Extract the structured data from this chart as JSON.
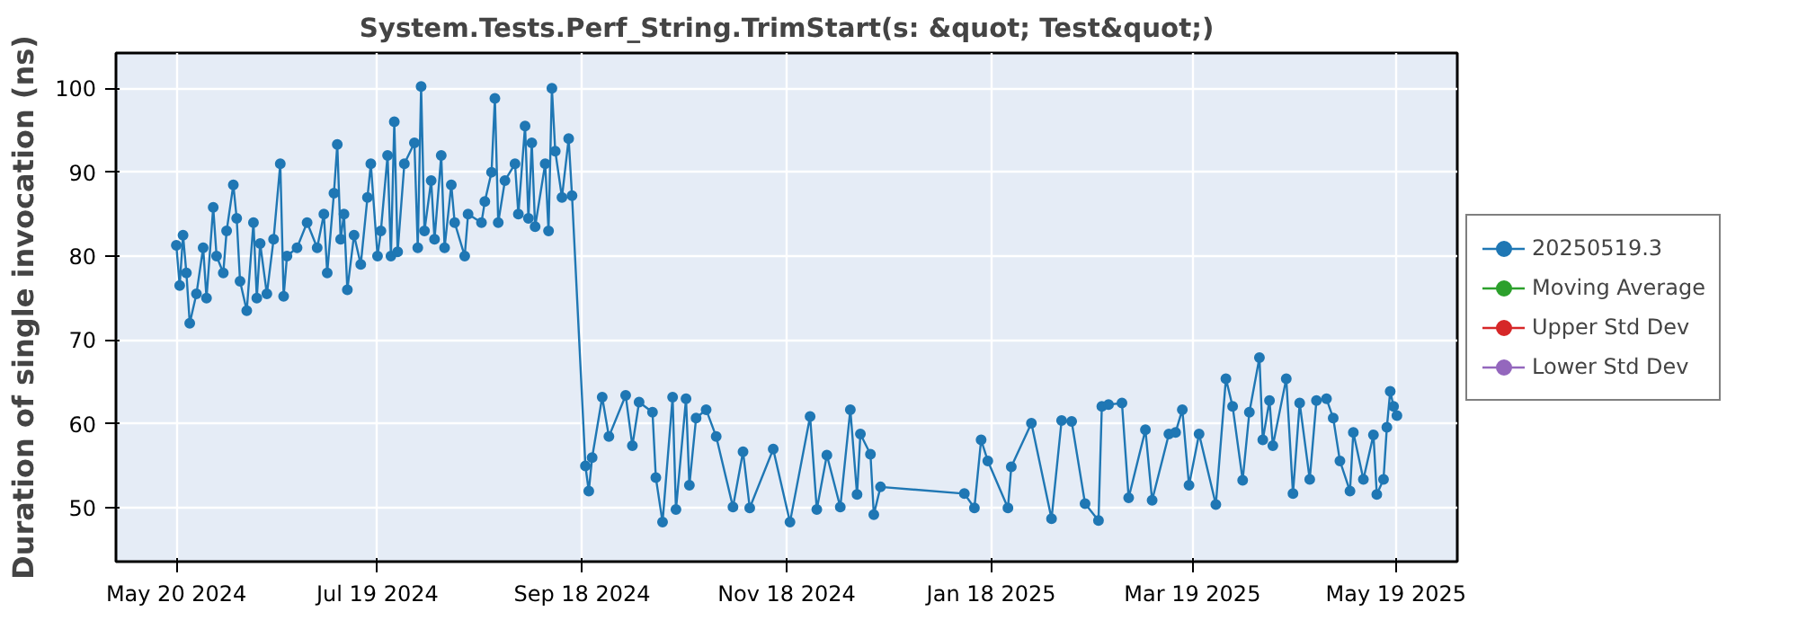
{
  "chart_data": {
    "type": "line",
    "title": "System.Tests.Perf_String.TrimStart(s: &quot; Test&quot;)",
    "ylabel": "Duration of single invocation (ns)",
    "xlim": [
      "2024-05-02",
      "2025-06-06"
    ],
    "ylim": [
      43.6,
      104.2
    ],
    "xticks": [
      {
        "value": "2024-05-20",
        "label": "May 20 2024"
      },
      {
        "value": "2024-07-19",
        "label": "Jul 19 2024"
      },
      {
        "value": "2024-09-18",
        "label": "Sep 18 2024"
      },
      {
        "value": "2024-11-18",
        "label": "Nov 18 2024"
      },
      {
        "value": "2025-01-18",
        "label": "Jan 18 2025"
      },
      {
        "value": "2025-03-19",
        "label": "Mar 19 2025"
      },
      {
        "value": "2025-05-19",
        "label": "May 19 2025"
      }
    ],
    "yticks": [
      50,
      60,
      70,
      80,
      90,
      100
    ],
    "grid": true,
    "legend": "right",
    "marker": "circle",
    "line_style": "solid",
    "series": [
      {
        "name": "20250519.3",
        "color": "#1f77b4",
        "x": [
          "2024-05-20",
          "2024-05-21",
          "2024-05-22",
          "2024-05-23",
          "2024-05-24",
          "2024-05-26",
          "2024-05-28",
          "2024-05-29",
          "2024-05-31",
          "2024-06-01",
          "2024-06-03",
          "2024-06-04",
          "2024-06-06",
          "2024-06-07",
          "2024-06-08",
          "2024-06-10",
          "2024-06-12",
          "2024-06-13",
          "2024-06-14",
          "2024-06-16",
          "2024-06-18",
          "2024-06-20",
          "2024-06-21",
          "2024-06-22",
          "2024-06-25",
          "2024-06-28",
          "2024-07-01",
          "2024-07-03",
          "2024-07-04",
          "2024-07-06",
          "2024-07-07",
          "2024-07-08",
          "2024-07-09",
          "2024-07-10",
          "2024-07-12",
          "2024-07-14",
          "2024-07-16",
          "2024-07-17",
          "2024-07-19",
          "2024-07-20",
          "2024-07-22",
          "2024-07-23",
          "2024-07-24",
          "2024-07-25",
          "2024-07-27",
          "2024-07-30",
          "2024-07-31",
          "2024-08-01",
          "2024-08-02",
          "2024-08-04",
          "2024-08-05",
          "2024-08-07",
          "2024-08-08",
          "2024-08-10",
          "2024-08-11",
          "2024-08-14",
          "2024-08-15",
          "2024-08-19",
          "2024-08-20",
          "2024-08-22",
          "2024-08-23",
          "2024-08-24",
          "2024-08-26",
          "2024-08-29",
          "2024-08-30",
          "2024-09-01",
          "2024-09-02",
          "2024-09-03",
          "2024-09-04",
          "2024-09-07",
          "2024-09-08",
          "2024-09-09",
          "2024-09-10",
          "2024-09-12",
          "2024-09-14",
          "2024-09-15",
          "2024-09-19",
          "2024-09-20",
          "2024-09-21",
          "2024-09-24",
          "2024-09-26",
          "2024-10-01",
          "2024-10-03",
          "2024-10-05",
          "2024-10-09",
          "2024-10-10",
          "2024-10-12",
          "2024-10-15",
          "2024-10-16",
          "2024-10-19",
          "2024-10-20",
          "2024-10-22",
          "2024-10-25",
          "2024-10-28",
          "2024-11-02",
          "2024-11-05",
          "2024-11-07",
          "2024-11-14",
          "2024-11-19",
          "2024-11-25",
          "2024-11-27",
          "2024-11-30",
          "2024-12-04",
          "2024-12-07",
          "2024-12-09",
          "2024-12-10",
          "2024-12-13",
          "2024-12-14",
          "2024-12-16",
          "2025-01-10",
          "2025-01-13",
          "2025-01-15",
          "2025-01-17",
          "2025-01-23",
          "2025-01-24",
          "2025-01-30",
          "2025-02-05",
          "2025-02-08",
          "2025-02-11",
          "2025-02-15",
          "2025-02-19",
          "2025-02-20",
          "2025-02-22",
          "2025-02-26",
          "2025-02-28",
          "2025-03-05",
          "2025-03-07",
          "2025-03-12",
          "2025-03-14",
          "2025-03-16",
          "2025-03-18",
          "2025-03-21",
          "2025-03-26",
          "2025-03-29",
          "2025-03-31",
          "2025-04-03",
          "2025-04-05",
          "2025-04-08",
          "2025-04-09",
          "2025-04-11",
          "2025-04-12",
          "2025-04-16",
          "2025-04-18",
          "2025-04-20",
          "2025-04-23",
          "2025-04-25",
          "2025-04-28",
          "2025-04-30",
          "2025-05-02",
          "2025-05-05",
          "2025-05-06",
          "2025-05-09",
          "2025-05-12",
          "2025-05-13",
          "2025-05-15",
          "2025-05-16",
          "2025-05-17",
          "2025-05-18",
          "2025-05-19"
        ],
        "values": [
          81.3,
          76.5,
          82.5,
          78,
          72,
          75.5,
          81,
          75,
          85.8,
          80,
          78,
          83,
          88.5,
          84.5,
          77,
          73.5,
          84,
          75,
          81.5,
          75.5,
          82,
          91,
          75.2,
          80,
          81,
          84,
          81,
          85,
          78,
          87.5,
          93.3,
          82,
          85,
          76,
          82.5,
          79,
          87,
          91,
          80,
          83,
          92,
          80,
          96,
          80.5,
          91,
          93.5,
          81,
          100.2,
          83,
          89,
          82,
          92,
          81,
          88.5,
          84,
          80,
          85,
          84,
          86.5,
          90,
          98.8,
          84,
          89,
          91,
          85,
          95.5,
          84.5,
          93.5,
          83.5,
          91,
          83,
          100,
          92.5,
          87,
          94,
          87.2,
          55,
          52,
          56,
          63.2,
          58.5,
          63.4,
          57.4,
          62.6,
          61.4,
          53.6,
          48.3,
          63.2,
          49.8,
          63,
          52.7,
          60.7,
          61.7,
          58.5,
          50.1,
          56.7,
          50,
          57,
          48.3,
          60.9,
          49.8,
          56.3,
          50.1,
          61.7,
          51.6,
          58.8,
          56.4,
          49.2,
          52.5,
          51.7,
          50,
          58.1,
          55.6,
          50,
          54.9,
          60.1,
          48.7,
          60.4,
          60.3,
          50.5,
          48.5,
          62.1,
          62.3,
          62.5,
          51.2,
          59.3,
          50.9,
          58.8,
          59,
          61.7,
          52.7,
          58.8,
          50.4,
          65.4,
          62.1,
          53.3,
          61.4,
          67.9,
          58.1,
          62.8,
          57.4,
          65.4,
          51.7,
          62.5,
          53.4,
          62.8,
          63,
          60.7,
          55.6,
          52,
          59,
          53.4,
          58.7,
          51.6,
          53.4,
          59.6,
          63.9,
          62.1,
          61
        ]
      },
      {
        "name": "Moving Average",
        "color": "#2ca02c"
      },
      {
        "name": "Upper Std Dev",
        "color": "#d62728"
      },
      {
        "name": "Lower Std Dev",
        "color": "#9467bd"
      }
    ]
  }
}
